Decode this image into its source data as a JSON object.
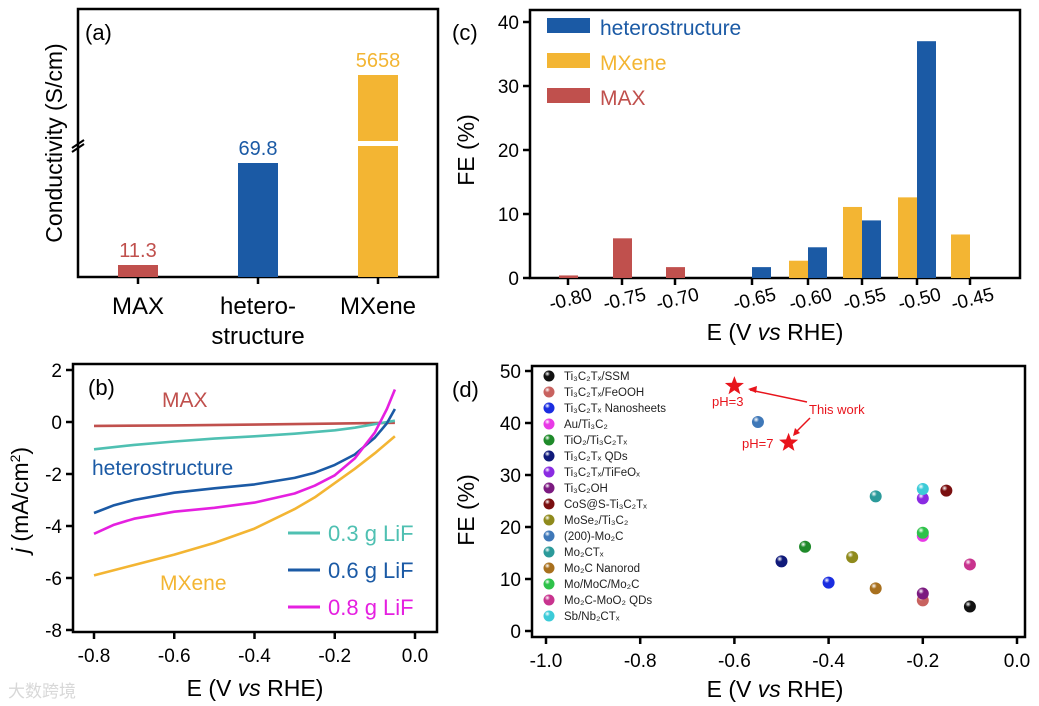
{
  "colors": {
    "max": "#c0504d",
    "hetero": "#1b5aa5",
    "mxene": "#f3b533",
    "teal": "#4fc0b2",
    "magenta": "#e520e0",
    "star": "#e8141c"
  },
  "watermark": "大数跨境",
  "chart_data": [
    {
      "panel": "(a)",
      "type": "bar",
      "ylabel": "Conductivity (S/cm)",
      "categories": [
        "MAX",
        "hetero-|structure",
        "MXene"
      ],
      "category_lines": [
        [
          "MAX"
        ],
        [
          "hetero-",
          "structure"
        ],
        [
          "MXene"
        ]
      ],
      "values": [
        11.3,
        69.8,
        5658
      ],
      "value_labels": [
        "11.3",
        "69.8",
        "5658"
      ],
      "axis_break": true
    },
    {
      "panel": "(b)",
      "type": "line",
      "xlabel_parts": [
        "E (V ",
        "vs",
        " RHE)"
      ],
      "ylabel_parts": [
        "j",
        " (mA/cm",
        "2",
        ")"
      ],
      "xlim": [
        -0.85,
        0.05
      ],
      "ylim": [
        -8,
        2
      ],
      "xticks": [
        "-0.8",
        "-0.6",
        "-0.4",
        "-0.2",
        "0.0"
      ],
      "yticks": [
        "2",
        "0",
        "-2",
        "-4",
        "-6",
        "-8"
      ],
      "annotations": [
        "MAX",
        "heterostructure",
        "MXene"
      ],
      "legend": [
        "0.3 g LiF",
        "0.6 g LiF",
        "0.8 g LiF"
      ],
      "series": [
        {
          "name": "MAX",
          "x": [
            -0.8,
            -0.6,
            -0.4,
            -0.2,
            -0.05
          ],
          "y": [
            -0.15,
            -0.13,
            -0.1,
            -0.06,
            -0.03
          ]
        },
        {
          "name": "0.3 g LiF",
          "x": [
            -0.8,
            -0.7,
            -0.6,
            -0.5,
            -0.4,
            -0.3,
            -0.2,
            -0.15,
            -0.1,
            -0.05
          ],
          "y": [
            -1.05,
            -0.88,
            -0.75,
            -0.64,
            -0.55,
            -0.45,
            -0.32,
            -0.22,
            -0.08,
            0.05
          ]
        },
        {
          "name": "0.6 g LiF",
          "x": [
            -0.8,
            -0.75,
            -0.7,
            -0.6,
            -0.5,
            -0.4,
            -0.3,
            -0.25,
            -0.2,
            -0.15,
            -0.1,
            -0.07,
            -0.05
          ],
          "y": [
            -3.5,
            -3.2,
            -3.0,
            -2.72,
            -2.55,
            -2.4,
            -2.15,
            -1.95,
            -1.65,
            -1.25,
            -0.6,
            -0.05,
            0.5
          ]
        },
        {
          "name": "0.8 g LiF",
          "x": [
            -0.8,
            -0.75,
            -0.7,
            -0.6,
            -0.5,
            -0.4,
            -0.3,
            -0.25,
            -0.2,
            -0.15,
            -0.1,
            -0.07,
            -0.05
          ],
          "y": [
            -4.3,
            -3.95,
            -3.72,
            -3.45,
            -3.3,
            -3.1,
            -2.75,
            -2.45,
            -2.05,
            -1.4,
            -0.4,
            0.5,
            1.25
          ]
        },
        {
          "name": "MXene",
          "x": [
            -0.8,
            -0.7,
            -0.6,
            -0.5,
            -0.4,
            -0.3,
            -0.25,
            -0.2,
            -0.15,
            -0.1,
            -0.05
          ],
          "y": [
            -5.9,
            -5.5,
            -5.1,
            -4.65,
            -4.1,
            -3.35,
            -2.9,
            -2.35,
            -1.8,
            -1.2,
            -0.55
          ]
        }
      ]
    },
    {
      "panel": "(c)",
      "type": "bar",
      "xlabel_parts": [
        "E (V ",
        "vs",
        " RHE)"
      ],
      "ylabel": "FE (%)",
      "ylim": [
        0,
        40
      ],
      "yticks": [
        "0",
        "10",
        "20",
        "30",
        "40"
      ],
      "categories": [
        "-0.80",
        "-0.75",
        "-0.70",
        "-0.65",
        "-0.60",
        "-0.55",
        "-0.50",
        "-0.45"
      ],
      "legend_placement": "top-left",
      "series": [
        {
          "name": "heterostructure",
          "values": [
            null,
            null,
            null,
            1.7,
            4.8,
            9.0,
            37.0,
            null
          ]
        },
        {
          "name": "MXene",
          "values": [
            null,
            null,
            null,
            null,
            2.7,
            11.1,
            12.6,
            6.8
          ]
        },
        {
          "name": "MAX",
          "values": [
            0.4,
            6.2,
            1.7,
            null,
            null,
            null,
            null,
            null
          ]
        }
      ]
    },
    {
      "panel": "(d)",
      "type": "scatter",
      "xlabel_parts": [
        "E (V ",
        "vs",
        " RHE)"
      ],
      "ylabel": "FE (%)",
      "xlim": [
        -1.0,
        0.0
      ],
      "ylim": [
        0,
        50
      ],
      "xticks": [
        "-1.0",
        "-0.8",
        "-0.6",
        "-0.4",
        "-0.2",
        "0.0"
      ],
      "yticks": [
        "0",
        "10",
        "20",
        "30",
        "40",
        "50"
      ],
      "points": [
        {
          "name": "Ti₃C₂Tₓ/SSM",
          "color": "#111111",
          "x": -0.1,
          "y": 4.7
        },
        {
          "name": "Ti₃C₂Tₓ/FeOOH",
          "color": "#c8625f",
          "x": -0.2,
          "y": 5.9
        },
        {
          "name": "Ti₃C₂Tₓ Nanosheets",
          "color": "#1a2de0",
          "x": -0.4,
          "y": 9.3
        },
        {
          "name": "Au/Ti₃C₂",
          "color": "#e83ae6",
          "x": -0.2,
          "y": 18.3
        },
        {
          "name": "TiO₂/Ti₃C₂Tₓ",
          "color": "#1f8a2a",
          "x": -0.45,
          "y": 16.2
        },
        {
          "name": "Ti₃C₂Tₓ QDs",
          "color": "#101a7a",
          "x": -0.5,
          "y": 13.4
        },
        {
          "name": "Ti₃C₂Tₓ/TiFeOₓ",
          "color": "#8a2be2",
          "x": -0.2,
          "y": 25.5
        },
        {
          "name": "Ti₃C₂OH",
          "color": "#7b1a80",
          "x": -0.2,
          "y": 7.2
        },
        {
          "name": "CoS@S-Ti₃C₂Tₓ",
          "color": "#7a0f10",
          "x": -0.15,
          "y": 27.0
        },
        {
          "name": "MoSe₂/Ti₃C₂",
          "color": "#8f8a1c",
          "x": -0.35,
          "y": 14.2
        },
        {
          "name": "(200)-Mo₂C",
          "color": "#3f78b8",
          "x": -0.55,
          "y": 40.2
        },
        {
          "name": "Mo₂CTₓ",
          "color": "#2b9a9a",
          "x": -0.3,
          "y": 25.9
        },
        {
          "name": "Mo₂C Nanorod",
          "color": "#a8701e",
          "x": -0.3,
          "y": 8.2
        },
        {
          "name": "Mo/MoC/Mo₂C",
          "color": "#2ec24a",
          "x": -0.2,
          "y": 18.9
        },
        {
          "name": "Mo₂C-MoO₂ QDs",
          "color": "#c8338e",
          "x": -0.1,
          "y": 12.8
        },
        {
          "name": "Sb/Nb₂CTₓ",
          "color": "#3ccbd8",
          "x": -0.2,
          "y": 27.3
        }
      ],
      "this_work": {
        "label": "This work",
        "points": [
          {
            "label": "pH=3",
            "x": -0.6,
            "y": 47.1
          },
          {
            "label": "pH=7",
            "x": -0.485,
            "y": 36.2
          }
        ]
      }
    }
  ]
}
